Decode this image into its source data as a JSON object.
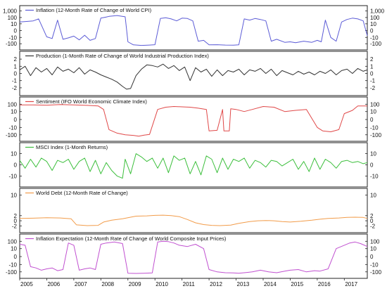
{
  "chart_data": [
    {
      "type": "line",
      "series": [
        {
          "name": "Inflation (12-Month Rate of Change of World CPI)"
        }
      ],
      "color": "#5b5bd6",
      "scale": "symlog",
      "yticks": [
        1000,
        100,
        10,
        0,
        -10,
        -100
      ],
      "ytick_labels": [
        "1,000",
        "100",
        "10",
        "0",
        "-10",
        "-100"
      ],
      "ylim": [
        -200,
        1500
      ],
      "xlim": [
        2005.0,
        2017.85
      ],
      "x": [
        2005.0,
        2005.3,
        2005.5,
        2005.7,
        2006.0,
        2006.2,
        2006.4,
        2006.6,
        2006.8,
        2007.0,
        2007.2,
        2007.4,
        2007.6,
        2007.8,
        2008.0,
        2008.2,
        2008.3,
        2008.6,
        2008.9,
        2009.0,
        2009.2,
        2009.5,
        2009.8,
        2010.0,
        2010.2,
        2010.4,
        2010.6,
        2010.8,
        2011.0,
        2011.2,
        2011.4,
        2011.6,
        2011.8,
        2012.0,
        2012.3,
        2012.6,
        2012.9,
        2013.1,
        2013.3,
        2013.5,
        2013.7,
        2013.9,
        2014.1,
        2014.3,
        2014.5,
        2014.8,
        2015.0,
        2015.2,
        2015.5,
        2015.8,
        2016.0,
        2016.15,
        2016.3,
        2016.5,
        2016.7,
        2016.9,
        2017.1,
        2017.3,
        2017.5,
        2017.7,
        2017.85
      ],
      "values": [
        20,
        25,
        30,
        60,
        -8,
        -15,
        40,
        -20,
        -12,
        -6,
        -25,
        -4,
        -30,
        -15,
        80,
        120,
        150,
        200,
        130,
        -50,
        -150,
        -180,
        -160,
        -140,
        70,
        90,
        60,
        30,
        80,
        70,
        30,
        -40,
        -30,
        -150,
        -140,
        -160,
        -170,
        -150,
        60,
        40,
        70,
        50,
        30,
        -40,
        -20,
        -60,
        -50,
        -70,
        -40,
        -60,
        -30,
        -50,
        40,
        -10,
        -40,
        20,
        50,
        80,
        60,
        30,
        -5
      ]
    },
    {
      "type": "line",
      "series": [
        {
          "name": "Production (1-Month Rate of Change of World Industrial Production Index)"
        }
      ],
      "color": "#333333",
      "scale": "linear",
      "yticks": [
        2,
        1,
        0,
        -1,
        -2
      ],
      "ytick_labels": [
        "2",
        "1",
        "0",
        "-1",
        "-2"
      ],
      "ylim": [
        -2.5,
        2.5
      ],
      "xlim": [
        2005.0,
        2017.85
      ],
      "x": [
        2005.0,
        2005.2,
        2005.4,
        2005.6,
        2005.8,
        2006.0,
        2006.2,
        2006.4,
        2006.6,
        2006.8,
        2007.0,
        2007.2,
        2007.4,
        2007.6,
        2007.8,
        2008.0,
        2008.2,
        2008.4,
        2008.6,
        2008.8,
        2008.95,
        2009.1,
        2009.3,
        2009.5,
        2009.7,
        2009.9,
        2010.1,
        2010.3,
        2010.5,
        2010.7,
        2010.9,
        2011.1,
        2011.3,
        2011.5,
        2011.7,
        2011.9,
        2012.1,
        2012.3,
        2012.5,
        2012.7,
        2012.9,
        2013.1,
        2013.3,
        2013.5,
        2013.7,
        2013.9,
        2014.1,
        2014.3,
        2014.5,
        2014.7,
        2014.9,
        2015.1,
        2015.3,
        2015.5,
        2015.7,
        2015.9,
        2016.1,
        2016.3,
        2016.5,
        2016.7,
        2016.9,
        2017.1,
        2017.3,
        2017.5,
        2017.7,
        2017.85
      ],
      "values": [
        0.5,
        1.0,
        -0.3,
        0.8,
        0.2,
        0.7,
        -0.2,
        0.9,
        0.3,
        0.6,
        0.1,
        0.8,
        -0.1,
        0.5,
        0.2,
        -0.2,
        -0.5,
        -0.8,
        -1.2,
        -1.8,
        -2.2,
        -2.1,
        -0.3,
        0.6,
        1.2,
        1.1,
        0.9,
        1.3,
        0.7,
        1.1,
        0.4,
        0.9,
        -1.0,
        0.8,
        0.2,
        0.6,
        -0.4,
        0.5,
        -0.3,
        0.4,
        0.2,
        0.6,
        -0.2,
        0.5,
        0.3,
        0.7,
        0.0,
        0.6,
        -0.3,
        0.4,
        0.1,
        -0.2,
        0.3,
        -0.1,
        0.2,
        -0.2,
        0.3,
        0.0,
        0.5,
        -0.2,
        0.4,
        0.6,
        0.0,
        0.7,
        0.3,
        0.5
      ]
    },
    {
      "type": "line",
      "series": [
        {
          "name": "Sentiment (IFO World Economic Climate Index)"
        }
      ],
      "color": "#e04848",
      "scale": "symlog",
      "yticks": [
        100,
        10,
        0,
        -10,
        -100
      ],
      "ytick_labels": [
        "100",
        "10",
        "0",
        "-10",
        "-100"
      ],
      "ylim": [
        -200,
        250
      ],
      "xlim": [
        2005.0,
        2017.85
      ],
      "x": [
        2005.0,
        2005.5,
        2006.0,
        2006.5,
        2007.0,
        2007.5,
        2007.9,
        2008.1,
        2008.3,
        2008.6,
        2008.9,
        2009.2,
        2009.4,
        2009.6,
        2009.8,
        2010.1,
        2010.4,
        2010.7,
        2011.0,
        2011.3,
        2011.6,
        2011.9,
        2012.0,
        2012.3,
        2012.5,
        2012.55,
        2012.75,
        2012.8,
        2013.0,
        2013.3,
        2013.6,
        2014.0,
        2014.4,
        2014.8,
        2015.2,
        2015.6,
        2016.0,
        2016.2,
        2016.5,
        2016.8,
        2017.0,
        2017.3,
        2017.5,
        2017.85
      ],
      "values": [
        80,
        80,
        75,
        90,
        80,
        70,
        60,
        20,
        -20,
        -60,
        -100,
        -120,
        -150,
        -110,
        -90,
        20,
        40,
        50,
        45,
        40,
        30,
        20,
        -30,
        -25,
        20,
        -30,
        -30,
        25,
        20,
        10,
        20,
        50,
        40,
        10,
        15,
        20,
        -10,
        -30,
        -40,
        -20,
        5,
        15,
        60,
        60
      ]
    },
    {
      "type": "line",
      "series": [
        {
          "name": "MSCI Index (1-Month Returns)"
        }
      ],
      "color": "#3cbf3c",
      "scale": "linear",
      "yticks": [
        10,
        0,
        -10
      ],
      "ytick_labels": [
        "10",
        "0",
        "-10"
      ],
      "ylim": [
        -16,
        16
      ],
      "xlim": [
        2005.0,
        2017.85
      ],
      "x": [
        2005.0,
        2005.2,
        2005.4,
        2005.6,
        2005.8,
        2006.0,
        2006.2,
        2006.4,
        2006.6,
        2006.8,
        2007.0,
        2007.2,
        2007.4,
        2007.6,
        2007.8,
        2008.0,
        2008.2,
        2008.4,
        2008.6,
        2008.8,
        2008.9,
        2009.1,
        2009.3,
        2009.5,
        2009.7,
        2009.9,
        2010.1,
        2010.3,
        2010.5,
        2010.7,
        2010.9,
        2011.1,
        2011.3,
        2011.5,
        2011.7,
        2011.9,
        2012.1,
        2012.3,
        2012.5,
        2012.7,
        2012.9,
        2013.1,
        2013.3,
        2013.5,
        2013.7,
        2013.9,
        2014.1,
        2014.3,
        2014.5,
        2014.7,
        2014.9,
        2015.1,
        2015.3,
        2015.5,
        2015.7,
        2015.9,
        2016.1,
        2016.3,
        2016.5,
        2016.7,
        2016.9,
        2017.1,
        2017.3,
        2017.5,
        2017.7,
        2017.85
      ],
      "values": [
        4,
        -3,
        5,
        -2,
        6,
        3,
        -5,
        4,
        2,
        5,
        -4,
        3,
        6,
        -6,
        4,
        -8,
        2,
        -5,
        -10,
        -12,
        5,
        -8,
        10,
        7,
        3,
        6,
        -3,
        6,
        -7,
        8,
        4,
        6,
        -8,
        3,
        -9,
        8,
        5,
        -7,
        6,
        -4,
        5,
        3,
        6,
        -3,
        4,
        2,
        -2,
        4,
        3,
        -1,
        2,
        5,
        -4,
        3,
        -6,
        6,
        -4,
        5,
        2,
        -3,
        3,
        4,
        2,
        3,
        1,
        2
      ]
    },
    {
      "type": "line",
      "series": [
        {
          "name": "World Debt (12-Month Rate of Change)"
        }
      ],
      "color": "#f29c4a",
      "scale": "linear",
      "yticks": [
        10,
        2,
        0,
        -2
      ],
      "ytick_labels": [
        "10",
        "2",
        "0",
        "-2"
      ],
      "ylim": [
        -3,
        11
      ],
      "xlim": [
        2005.0,
        2017.85
      ],
      "x": [
        2005.0,
        2005.5,
        2006.0,
        2006.5,
        2006.9,
        2007.1,
        2007.5,
        2007.9,
        2008.1,
        2008.4,
        2008.8,
        2009.1,
        2009.3,
        2009.7,
        2010.0,
        2010.3,
        2010.6,
        2010.9,
        2011.2,
        2011.5,
        2011.8,
        2012.1,
        2012.4,
        2012.8,
        2013.1,
        2013.5,
        2013.8,
        2014.1,
        2014.4,
        2014.7,
        2015.0,
        2015.4,
        2015.8,
        2016.1,
        2016.4,
        2016.8,
        2017.1,
        2017.4,
        2017.7,
        2017.85
      ],
      "values": [
        0.9,
        1.0,
        1.2,
        1.1,
        0.8,
        -1.6,
        -1.9,
        -1.8,
        -0.5,
        0.2,
        0.8,
        1.4,
        1.8,
        1.9,
        2.1,
        2.2,
        2.0,
        1.6,
        0.5,
        -0.8,
        -1.5,
        -1.8,
        -1.9,
        -1.7,
        -1.0,
        -0.3,
        0.0,
        0.1,
        0.0,
        -0.3,
        -0.5,
        -0.2,
        0.2,
        0.6,
        0.9,
        1.1,
        1.3,
        1.4,
        1.3,
        0.9
      ]
    },
    {
      "type": "line",
      "series": [
        {
          "name": "Inflation Expectation (12-Month Rate of Change of World Composite Input Prices)"
        }
      ],
      "color": "#c050d0",
      "scale": "symlog",
      "yticks": [
        100,
        10,
        0,
        -10,
        -100
      ],
      "ytick_labels": [
        "100",
        "10",
        "0",
        "-10",
        "-100"
      ],
      "ylim": [
        -200,
        250
      ],
      "xlim": [
        2005.0,
        2017.85
      ],
      "x": [
        2005.0,
        2005.2,
        2005.4,
        2005.6,
        2005.8,
        2006.0,
        2006.2,
        2006.4,
        2006.6,
        2006.8,
        2007.0,
        2007.2,
        2007.4,
        2007.6,
        2007.8,
        2008.0,
        2008.2,
        2008.5,
        2008.8,
        2009.0,
        2009.3,
        2009.6,
        2009.9,
        2010.1,
        2010.3,
        2010.5,
        2010.7,
        2010.9,
        2011.2,
        2011.5,
        2011.8,
        2012.0,
        2012.3,
        2012.6,
        2012.9,
        2013.1,
        2013.4,
        2013.6,
        2013.9,
        2014.2,
        2014.5,
        2014.8,
        2015.0,
        2015.3,
        2015.6,
        2015.9,
        2016.1,
        2016.4,
        2016.7,
        2017.0,
        2017.2,
        2017.4,
        2017.6,
        2017.85
      ],
      "values": [
        40,
        30,
        -20,
        -30,
        -60,
        -40,
        -30,
        -70,
        -50,
        60,
        30,
        -60,
        -40,
        -30,
        -50,
        40,
        60,
        80,
        50,
        -150,
        -160,
        -150,
        -140,
        80,
        100,
        90,
        60,
        30,
        20,
        40,
        10,
        -50,
        -100,
        -130,
        -140,
        -150,
        -120,
        -100,
        -60,
        -100,
        -130,
        -80,
        -60,
        -50,
        -100,
        -70,
        -80,
        -40,
        10,
        30,
        60,
        80,
        50,
        20
      ]
    }
  ],
  "x_axis": {
    "year_labels": [
      "2005",
      "2006",
      "2007",
      "2008",
      "2009",
      "2010",
      "2011",
      "2012",
      "2013",
      "2014",
      "2015",
      "2016",
      "2017"
    ],
    "years": [
      2005,
      2006,
      2007,
      2008,
      2009,
      2010,
      2011,
      2012,
      2013,
      2014,
      2015,
      2016,
      2017
    ]
  }
}
